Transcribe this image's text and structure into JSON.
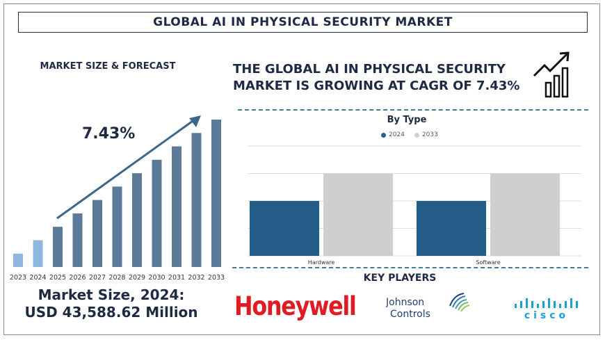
{
  "header": {
    "title": "GLOBAL AI IN PHYSICAL SECURITY MARKET"
  },
  "left_panel": {
    "heading": "MARKET SIZE & FORECAST",
    "cagr_label": "7.43%",
    "market_size_line1": "Market Size, 2024:",
    "market_size_line2": "USD 43,588.62 Million"
  },
  "headline": {
    "line1": "THE GLOBAL AI IN PHYSICAL SECURITY",
    "line2": "MARKET IS GROWING AT CAGR OF 7.43%"
  },
  "key_players": {
    "heading": "KEY PLAYERS",
    "logos": [
      "Honeywell",
      "Johnson",
      "Controls",
      "cisco"
    ]
  },
  "colors": {
    "navy": "#1e2a44",
    "forecast_bar": "#5b7b99",
    "historic_bar": "#8db7de",
    "series_2024": "#245d8a",
    "series_2033": "#cfcfcf",
    "honeywell_red": "#e11b22",
    "cisco_blue": "#1ba0d7",
    "dashed_rule": "#3f7e90"
  },
  "chart_data": [
    {
      "type": "bar",
      "categories": [
        "2023",
        "2024",
        "2025",
        "2026",
        "2027",
        "2028",
        "2029",
        "2030",
        "2031",
        "2032",
        "2033"
      ],
      "values": [
        1.0,
        2.0,
        3.0,
        4.0,
        5.0,
        6.0,
        7.0,
        8.0,
        9.0,
        10.0,
        11.0
      ],
      "historic_count": 2,
      "title": "",
      "xlabel": "",
      "ylabel": "",
      "ylim": [
        0,
        11
      ],
      "grid": false,
      "trend_arrow": true
    },
    {
      "type": "bar",
      "title": "By Type",
      "categories": [
        "Hardware",
        "Software"
      ],
      "series": [
        {
          "name": "2024",
          "values": [
            2,
            2
          ]
        },
        {
          "name": "2033",
          "values": [
            3,
            3
          ]
        }
      ],
      "ylim": [
        0,
        4
      ],
      "grid": true,
      "legend": "top-center"
    }
  ]
}
